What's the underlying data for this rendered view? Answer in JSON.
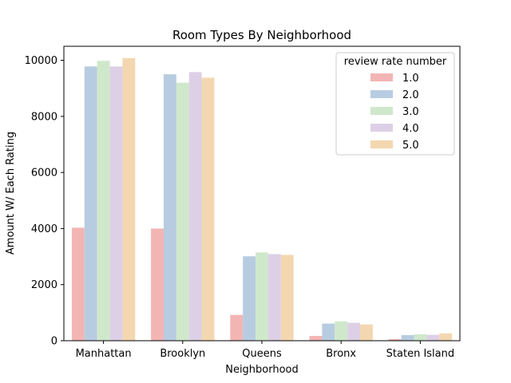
{
  "chart_data": {
    "type": "bar",
    "title": "Room Types By Neighborhood",
    "xlabel": "Neighborhood",
    "ylabel": "Amount W/ Each Rating",
    "ylim": [
      0,
      10500
    ],
    "yticks": [
      "0",
      "2000",
      "4000",
      "6000",
      "8000",
      "10000"
    ],
    "ytick_values": [
      0,
      2000,
      4000,
      6000,
      8000,
      10000
    ],
    "categories": [
      "Manhattan",
      "Brooklyn",
      "Queens",
      "Bronx",
      "Staten Island"
    ],
    "legend_title": "review rate number",
    "legend_position": "top-right",
    "grid": false,
    "series": [
      {
        "name": "1.0",
        "color": "#f2b5b4",
        "values": [
          4030,
          4000,
          920,
          170,
          60
        ]
      },
      {
        "name": "2.0",
        "color": "#b7cce0",
        "values": [
          9780,
          9500,
          3010,
          610,
          200
        ]
      },
      {
        "name": "3.0",
        "color": "#cfe8cb",
        "values": [
          9980,
          9200,
          3150,
          690,
          230
        ]
      },
      {
        "name": "4.0",
        "color": "#ddd0e6",
        "values": [
          9780,
          9580,
          3090,
          640,
          210
        ]
      },
      {
        "name": "5.0",
        "color": "#f3d7b0",
        "values": [
          10080,
          9380,
          3060,
          580,
          260
        ]
      }
    ]
  }
}
